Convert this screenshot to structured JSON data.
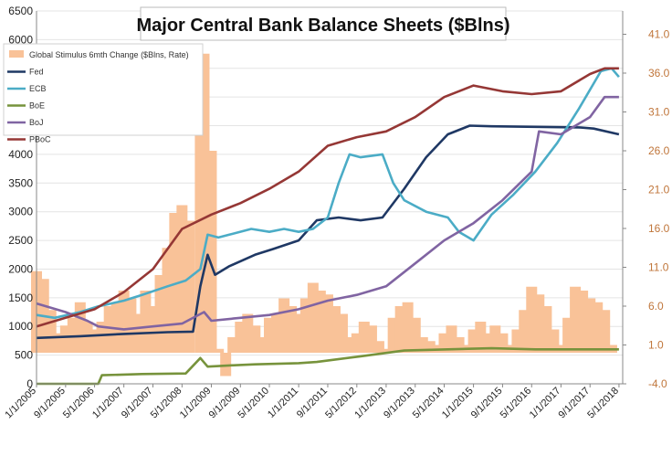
{
  "chart_data": {
    "type": "line",
    "title": "Major Central Bank Balance Sheets ($Blns)",
    "xlabel": "",
    "ylabel": "",
    "x_range": [
      "2005-01-01",
      "2018-06-01"
    ],
    "left_axis": {
      "ylim": [
        0,
        6500
      ],
      "ticks": [
        0,
        500,
        1000,
        1500,
        2000,
        2500,
        3000,
        3500,
        4000,
        4500,
        5000,
        5500,
        6000,
        6500
      ]
    },
    "right_axis": {
      "ylim": [
        -4.0,
        44.0
      ],
      "ticks": [
        "-4.0",
        "1.0",
        "6.0",
        "11.0",
        "16.0",
        "21.0",
        "26.0",
        "31.0",
        "36.0",
        "41.0"
      ]
    },
    "x_ticks": [
      "1/1/2005",
      "9/1/2005",
      "5/1/2006",
      "1/1/2007",
      "9/1/2007",
      "5/1/2008",
      "1/1/2009",
      "9/1/2009",
      "5/1/2010",
      "1/1/2011",
      "9/1/2011",
      "5/1/2012",
      "1/1/2013",
      "9/1/2013",
      "5/1/2014",
      "1/1/2015",
      "9/1/2015",
      "5/1/2016",
      "1/1/2017",
      "9/1/2017",
      "5/1/2018"
    ],
    "x_tick_dates": [
      "2005-01-01",
      "2005-09-01",
      "2006-05-01",
      "2007-01-01",
      "2007-09-01",
      "2008-05-01",
      "2009-01-01",
      "2009-09-01",
      "2010-05-01",
      "2011-01-01",
      "2011-09-01",
      "2012-05-01",
      "2013-01-01",
      "2013-09-01",
      "2014-05-01",
      "2015-01-01",
      "2015-09-01",
      "2016-05-01",
      "2017-01-01",
      "2017-09-01",
      "2018-05-01"
    ],
    "legend_position": "top-left",
    "bars": {
      "name": "Global Stimulus 6mth Change ($Blns, Rate)",
      "axis": "right",
      "color": "#f9c298",
      "points": [
        [
          "2005-01-01",
          10.5
        ],
        [
          "2005-03-01",
          9.5
        ],
        [
          "2005-05-01",
          5.5
        ],
        [
          "2005-07-01",
          2.5
        ],
        [
          "2005-09-01",
          3.5
        ],
        [
          "2005-11-01",
          4.5
        ],
        [
          "2006-01-01",
          6.5
        ],
        [
          "2006-03-01",
          4.0
        ],
        [
          "2006-05-01",
          3.0
        ],
        [
          "2006-07-01",
          4.0
        ],
        [
          "2006-09-01",
          6.0
        ],
        [
          "2006-11-01",
          6.5
        ],
        [
          "2007-01-01",
          8.0
        ],
        [
          "2007-03-01",
          7.0
        ],
        [
          "2007-05-01",
          5.0
        ],
        [
          "2007-07-01",
          8.0
        ],
        [
          "2007-09-01",
          6.0
        ],
        [
          "2007-11-01",
          10.0
        ],
        [
          "2008-01-01",
          13.5
        ],
        [
          "2008-03-01",
          18.0
        ],
        [
          "2008-05-01",
          19.0
        ],
        [
          "2008-07-01",
          17.0
        ],
        [
          "2008-10-01",
          30.0
        ],
        [
          "2008-11-01",
          38.5
        ],
        [
          "2009-01-01",
          26.0
        ],
        [
          "2009-03-01",
          0.5
        ],
        [
          "2009-05-01",
          -3.0
        ],
        [
          "2009-07-01",
          2.0
        ],
        [
          "2009-09-01",
          4.0
        ],
        [
          "2009-11-01",
          5.0
        ],
        [
          "2010-01-01",
          3.5
        ],
        [
          "2010-03-01",
          2.0
        ],
        [
          "2010-05-01",
          4.5
        ],
        [
          "2010-07-01",
          5.0
        ],
        [
          "2010-09-01",
          7.0
        ],
        [
          "2010-11-01",
          6.0
        ],
        [
          "2011-01-01",
          5.0
        ],
        [
          "2011-03-01",
          7.0
        ],
        [
          "2011-05-01",
          9.0
        ],
        [
          "2011-07-01",
          8.0
        ],
        [
          "2011-09-01",
          7.5
        ],
        [
          "2011-11-01",
          6.0
        ],
        [
          "2012-01-01",
          5.0
        ],
        [
          "2012-03-01",
          2.0
        ],
        [
          "2012-05-01",
          2.5
        ],
        [
          "2012-07-01",
          4.0
        ],
        [
          "2012-09-01",
          3.5
        ],
        [
          "2012-11-01",
          1.5
        ],
        [
          "2013-01-01",
          0.5
        ],
        [
          "2013-03-01",
          4.5
        ],
        [
          "2013-05-01",
          6.0
        ],
        [
          "2013-07-01",
          6.5
        ],
        [
          "2013-09-01",
          4.5
        ],
        [
          "2013-11-01",
          2.0
        ],
        [
          "2014-01-01",
          1.5
        ],
        [
          "2014-03-01",
          1.0
        ],
        [
          "2014-05-01",
          2.5
        ],
        [
          "2014-07-01",
          3.5
        ],
        [
          "2014-09-01",
          2.0
        ],
        [
          "2014-11-01",
          1.0
        ],
        [
          "2015-01-01",
          3.0
        ],
        [
          "2015-03-01",
          4.0
        ],
        [
          "2015-05-01",
          2.5
        ],
        [
          "2015-07-01",
          3.5
        ],
        [
          "2015-09-01",
          2.5
        ],
        [
          "2015-11-01",
          1.0
        ],
        [
          "2016-01-01",
          3.0
        ],
        [
          "2016-03-01",
          5.5
        ],
        [
          "2016-05-01",
          8.5
        ],
        [
          "2016-07-01",
          7.5
        ],
        [
          "2016-09-01",
          6.0
        ],
        [
          "2016-11-01",
          3.0
        ],
        [
          "2017-01-01",
          1.0
        ],
        [
          "2017-03-01",
          4.5
        ],
        [
          "2017-05-01",
          8.5
        ],
        [
          "2017-07-01",
          8.0
        ],
        [
          "2017-09-01",
          7.0
        ],
        [
          "2017-11-01",
          6.5
        ],
        [
          "2018-01-01",
          5.5
        ],
        [
          "2018-03-01",
          1.0
        ]
      ]
    },
    "series": [
      {
        "name": "Fed",
        "axis": "left",
        "color": "#1f3864",
        "points": [
          [
            "2005-01-01",
            800
          ],
          [
            "2006-01-01",
            830
          ],
          [
            "2007-01-01",
            870
          ],
          [
            "2008-01-01",
            900
          ],
          [
            "2008-08-01",
            910
          ],
          [
            "2008-10-01",
            1700
          ],
          [
            "2008-12-01",
            2250
          ],
          [
            "2009-02-01",
            1900
          ],
          [
            "2009-06-01",
            2050
          ],
          [
            "2010-01-01",
            2250
          ],
          [
            "2010-06-01",
            2350
          ],
          [
            "2011-01-01",
            2500
          ],
          [
            "2011-06-01",
            2850
          ],
          [
            "2011-12-01",
            2900
          ],
          [
            "2012-06-01",
            2850
          ],
          [
            "2012-12-01",
            2900
          ],
          [
            "2013-06-01",
            3400
          ],
          [
            "2013-12-01",
            3950
          ],
          [
            "2014-06-01",
            4350
          ],
          [
            "2014-12-01",
            4500
          ],
          [
            "2015-06-01",
            4490
          ],
          [
            "2016-06-01",
            4480
          ],
          [
            "2017-06-01",
            4470
          ],
          [
            "2017-10-01",
            4450
          ],
          [
            "2018-05-01",
            4350
          ]
        ]
      },
      {
        "name": "ECB",
        "axis": "left",
        "color": "#4bacc6",
        "points": [
          [
            "2005-01-01",
            1200
          ],
          [
            "2005-06-01",
            1150
          ],
          [
            "2006-01-01",
            1250
          ],
          [
            "2006-06-01",
            1350
          ],
          [
            "2007-01-01",
            1450
          ],
          [
            "2007-06-01",
            1550
          ],
          [
            "2008-01-01",
            1700
          ],
          [
            "2008-06-01",
            1800
          ],
          [
            "2008-10-01",
            2000
          ],
          [
            "2008-12-01",
            2600
          ],
          [
            "2009-03-01",
            2550
          ],
          [
            "2009-06-01",
            2600
          ],
          [
            "2009-12-01",
            2700
          ],
          [
            "2010-05-01",
            2650
          ],
          [
            "2010-09-01",
            2700
          ],
          [
            "2011-01-01",
            2650
          ],
          [
            "2011-05-01",
            2700
          ],
          [
            "2011-09-01",
            2900
          ],
          [
            "2011-12-01",
            3500
          ],
          [
            "2012-03-01",
            4000
          ],
          [
            "2012-06-01",
            3950
          ],
          [
            "2012-12-01",
            4000
          ],
          [
            "2013-03-01",
            3500
          ],
          [
            "2013-06-01",
            3200
          ],
          [
            "2013-12-01",
            3000
          ],
          [
            "2014-06-01",
            2900
          ],
          [
            "2014-09-01",
            2650
          ],
          [
            "2015-01-01",
            2500
          ],
          [
            "2015-06-01",
            2950
          ],
          [
            "2015-12-01",
            3300
          ],
          [
            "2016-06-01",
            3700
          ],
          [
            "2016-12-01",
            4200
          ],
          [
            "2017-06-01",
            4800
          ],
          [
            "2017-12-01",
            5450
          ],
          [
            "2018-03-01",
            5500
          ],
          [
            "2018-05-01",
            5350
          ]
        ]
      },
      {
        "name": "BoE",
        "axis": "left",
        "color": "#77933c",
        "points": [
          [
            "2005-01-01",
            0
          ],
          [
            "2005-06-01",
            0
          ],
          [
            "2006-01-01",
            0
          ],
          [
            "2006-06-01",
            0
          ],
          [
            "2006-07-01",
            150
          ],
          [
            "2007-06-01",
            170
          ],
          [
            "2008-06-01",
            180
          ],
          [
            "2008-10-01",
            450
          ],
          [
            "2008-12-01",
            300
          ],
          [
            "2009-06-01",
            320
          ],
          [
            "2010-01-01",
            340
          ],
          [
            "2011-01-01",
            360
          ],
          [
            "2011-06-01",
            380
          ],
          [
            "2012-06-01",
            480
          ],
          [
            "2013-06-01",
            580
          ],
          [
            "2014-06-01",
            600
          ],
          [
            "2015-06-01",
            620
          ],
          [
            "2016-06-01",
            600
          ],
          [
            "2017-06-01",
            600
          ],
          [
            "2018-05-01",
            600
          ]
        ]
      },
      {
        "name": "BoJ",
        "axis": "left",
        "color": "#8064a2",
        "points": [
          [
            "2005-01-01",
            1400
          ],
          [
            "2005-09-01",
            1250
          ],
          [
            "2006-03-01",
            1100
          ],
          [
            "2006-06-01",
            1000
          ],
          [
            "2007-01-01",
            950
          ],
          [
            "2007-09-01",
            1000
          ],
          [
            "2008-05-01",
            1050
          ],
          [
            "2008-11-01",
            1250
          ],
          [
            "2009-01-01",
            1100
          ],
          [
            "2009-09-01",
            1150
          ],
          [
            "2010-05-01",
            1200
          ],
          [
            "2011-01-01",
            1300
          ],
          [
            "2011-09-01",
            1450
          ],
          [
            "2012-05-01",
            1550
          ],
          [
            "2013-01-01",
            1700
          ],
          [
            "2013-09-01",
            2100
          ],
          [
            "2014-05-01",
            2500
          ],
          [
            "2015-01-01",
            2800
          ],
          [
            "2015-09-01",
            3200
          ],
          [
            "2016-05-01",
            3700
          ],
          [
            "2016-07-01",
            4400
          ],
          [
            "2017-01-01",
            4350
          ],
          [
            "2017-09-01",
            4650
          ],
          [
            "2018-01-01",
            5000
          ],
          [
            "2018-05-01",
            5000
          ]
        ]
      },
      {
        "name": "PBoC",
        "axis": "left",
        "color": "#953735",
        "points": [
          [
            "2005-01-01",
            1000
          ],
          [
            "2005-09-01",
            1150
          ],
          [
            "2006-05-01",
            1300
          ],
          [
            "2007-01-01",
            1600
          ],
          [
            "2007-09-01",
            2000
          ],
          [
            "2008-05-01",
            2700
          ],
          [
            "2009-01-01",
            2950
          ],
          [
            "2009-09-01",
            3150
          ],
          [
            "2010-05-01",
            3400
          ],
          [
            "2011-01-01",
            3700
          ],
          [
            "2011-09-01",
            4150
          ],
          [
            "2012-05-01",
            4300
          ],
          [
            "2013-01-01",
            4400
          ],
          [
            "2013-09-01",
            4650
          ],
          [
            "2014-05-01",
            5000
          ],
          [
            "2015-01-01",
            5200
          ],
          [
            "2015-09-01",
            5100
          ],
          [
            "2016-05-01",
            5050
          ],
          [
            "2017-01-01",
            5100
          ],
          [
            "2017-09-01",
            5400
          ],
          [
            "2018-01-01",
            5500
          ],
          [
            "2018-05-01",
            5500
          ]
        ]
      }
    ]
  }
}
